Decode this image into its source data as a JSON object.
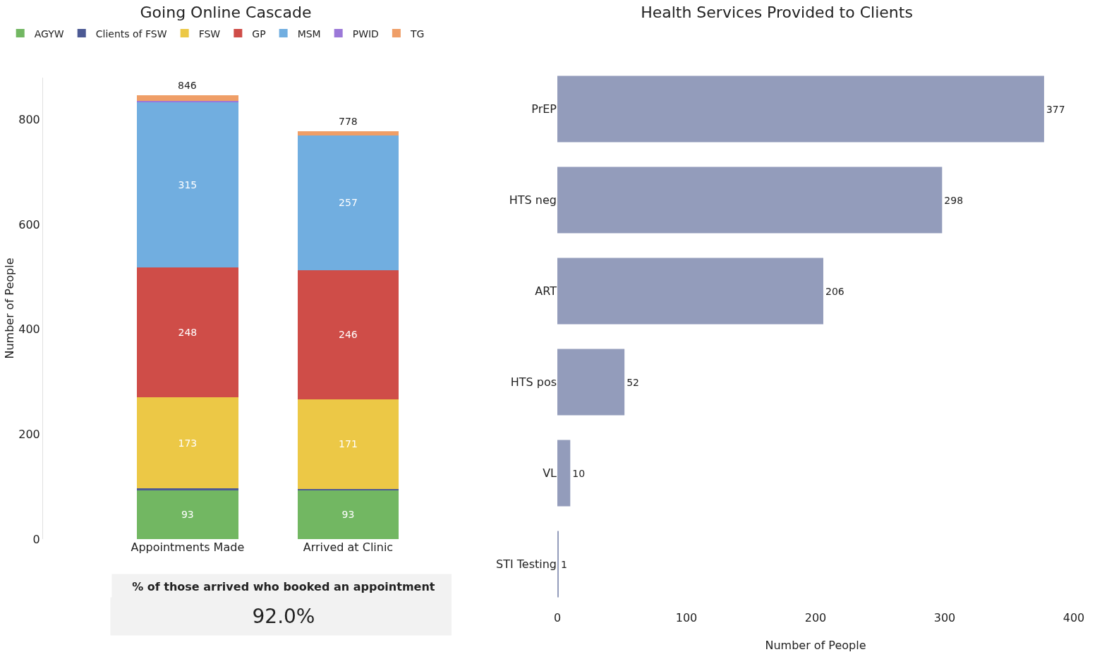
{
  "chart_data": [
    {
      "type": "bar",
      "title": "Going Online Cascade",
      "ylabel": "Number of People",
      "categories": [
        "Appointments Made",
        "Arrived at Clinic"
      ],
      "stacked": true,
      "legend": "top left",
      "grid": false,
      "ylim": [
        0,
        880
      ],
      "yticks": [
        0,
        200,
        400,
        600,
        800
      ],
      "totals": [
        "846",
        "778"
      ],
      "series": [
        {
          "name": "AGYW",
          "color": "#72b762",
          "values": [
            93,
            93
          ],
          "value_labels": [
            "93",
            "93"
          ]
        },
        {
          "name": "Clients of FSW",
          "color": "#4c5a94",
          "values": [
            4,
            3
          ],
          "value_labels": [
            null,
            null
          ]
        },
        {
          "name": "FSW",
          "color": "#ecc846",
          "values": [
            173,
            171
          ],
          "value_labels": [
            "173",
            "171"
          ]
        },
        {
          "name": "GP",
          "color": "#cf4d48",
          "values": [
            248,
            246
          ],
          "value_labels": [
            "248",
            "246"
          ]
        },
        {
          "name": "MSM",
          "color": "#71aee0",
          "values": [
            315,
            257
          ],
          "value_labels": [
            "315",
            "257"
          ]
        },
        {
          "name": "PWID",
          "color": "#9b78d8",
          "values": [
            2,
            0
          ],
          "value_labels": [
            null,
            null
          ]
        },
        {
          "name": "TG",
          "color": "#ef9e67",
          "values": [
            11,
            8
          ],
          "value_labels": [
            null,
            null
          ]
        }
      ],
      "annotations": [
        "% of those arrived who booked an appointment",
        "92.0%"
      ]
    },
    {
      "type": "bar",
      "title": "Health Services Provided to Clients",
      "orientation": "horizontal",
      "xlabel": "Number of People",
      "categories": [
        "PrEP",
        "HTS neg",
        "ART",
        "HTS pos",
        "VL",
        "STI Testing"
      ],
      "values": [
        377,
        298,
        206,
        52,
        10,
        1
      ],
      "color": "#939cbb",
      "data_labels": true,
      "grid": false,
      "xlim": [
        0,
        400
      ],
      "xticks": [
        0,
        100,
        200,
        300,
        400
      ]
    }
  ]
}
